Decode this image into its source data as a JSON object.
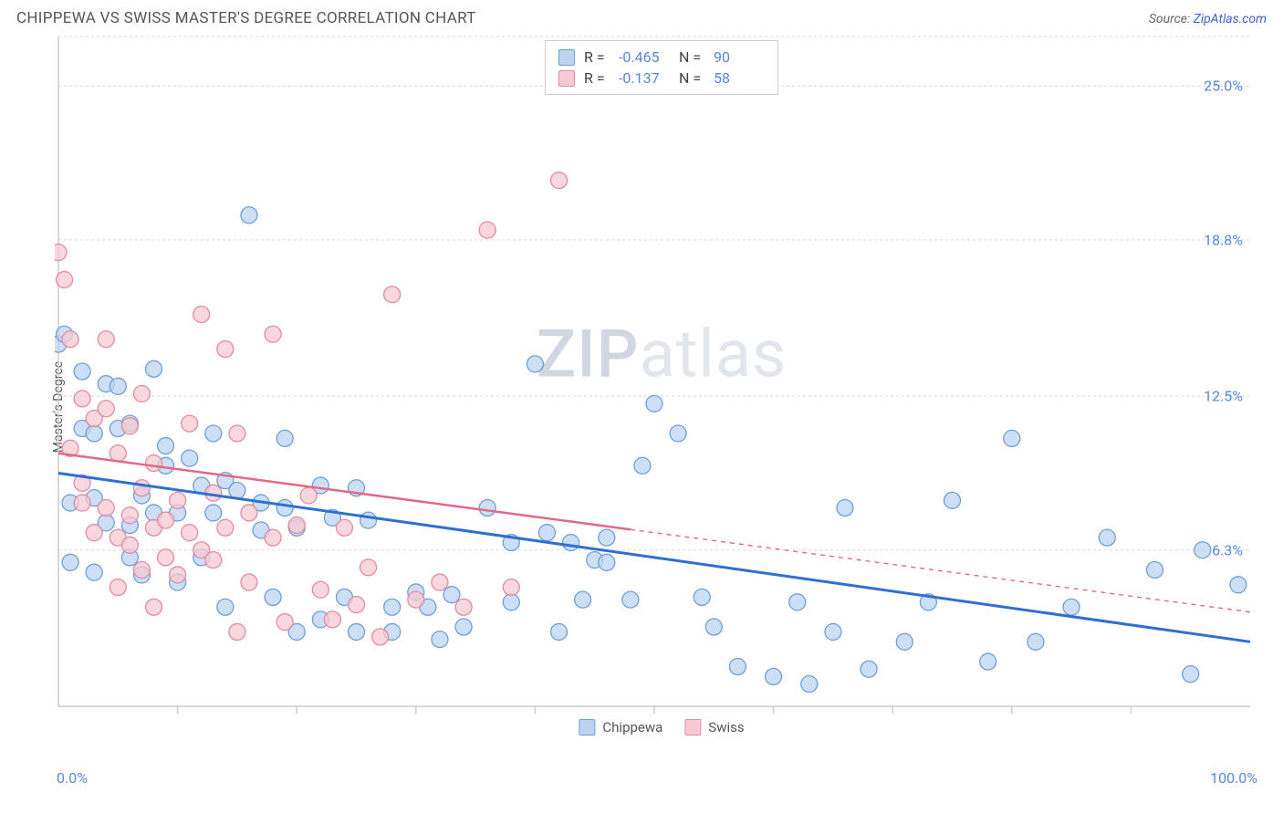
{
  "header": {
    "title": "CHIPPEWA VS SWISS MASTER'S DEGREE CORRELATION CHART",
    "source_prefix": "Source: ",
    "source_link": "ZipAtlas.com"
  },
  "watermark": {
    "bold": "ZIP",
    "light": "atlas"
  },
  "axes": {
    "ylabel": "Master's Degree",
    "xlim": [
      0,
      100
    ],
    "ylim": [
      0,
      27
    ],
    "x_tick_label_min": "0.0%",
    "x_tick_label_max": "100.0%",
    "y_ticks": [
      {
        "v": 6.3,
        "label": "6.3%"
      },
      {
        "v": 12.5,
        "label": "12.5%"
      },
      {
        "v": 18.8,
        "label": "18.8%"
      },
      {
        "v": 25.0,
        "label": "25.0%"
      }
    ],
    "x_minor_ticks": [
      10,
      20,
      30,
      40,
      50,
      60,
      70,
      80,
      90
    ],
    "grid_color": "#d7d7d7",
    "axis_color": "#cccccc",
    "tick_text_color": "#5a87d6",
    "background": "#ffffff"
  },
  "series": [
    {
      "name": "Chippewa",
      "point_fill": "#bcd4f0",
      "point_stroke": "#6f9fd8",
      "line_color": "#2f6fd0",
      "line_width": 3,
      "marker_r": 9,
      "R": "-0.465",
      "N": "90",
      "trend": {
        "x1": 0,
        "y1": 9.4,
        "x2": 100,
        "y2": 2.6
      },
      "dash_from_x": null,
      "points": [
        [
          0,
          14.6
        ],
        [
          0.5,
          15.0
        ],
        [
          1,
          5.8
        ],
        [
          1,
          8.2
        ],
        [
          2,
          11.2
        ],
        [
          2,
          13.5
        ],
        [
          3,
          8.4
        ],
        [
          3,
          11.0
        ],
        [
          3,
          5.4
        ],
        [
          4,
          13.0
        ],
        [
          4,
          7.4
        ],
        [
          5,
          11.2
        ],
        [
          5,
          12.9
        ],
        [
          6,
          11.4
        ],
        [
          6,
          7.3
        ],
        [
          6,
          6.0
        ],
        [
          7,
          8.5
        ],
        [
          7,
          5.3
        ],
        [
          8,
          13.6
        ],
        [
          8,
          7.8
        ],
        [
          9,
          9.7
        ],
        [
          9,
          10.5
        ],
        [
          10,
          5.0
        ],
        [
          10,
          7.8
        ],
        [
          11,
          10.0
        ],
        [
          12,
          8.9
        ],
        [
          12,
          6.0
        ],
        [
          13,
          11.0
        ],
        [
          13,
          7.8
        ],
        [
          14,
          9.1
        ],
        [
          14,
          4.0
        ],
        [
          15,
          8.7
        ],
        [
          16,
          19.8
        ],
        [
          17,
          8.2
        ],
        [
          17,
          7.1
        ],
        [
          18,
          4.4
        ],
        [
          19,
          10.8
        ],
        [
          19,
          8.0
        ],
        [
          20,
          3.0
        ],
        [
          20,
          7.2
        ],
        [
          22,
          8.9
        ],
        [
          22,
          3.5
        ],
        [
          23,
          7.6
        ],
        [
          24,
          4.4
        ],
        [
          25,
          8.8
        ],
        [
          25,
          3.0
        ],
        [
          26,
          7.5
        ],
        [
          28,
          4.0
        ],
        [
          28,
          3.0
        ],
        [
          30,
          4.6
        ],
        [
          31,
          4.0
        ],
        [
          32,
          2.7
        ],
        [
          33,
          4.5
        ],
        [
          34,
          3.2
        ],
        [
          36,
          8.0
        ],
        [
          38,
          4.2
        ],
        [
          38,
          6.6
        ],
        [
          40,
          13.8
        ],
        [
          41,
          7.0
        ],
        [
          42,
          3.0
        ],
        [
          43,
          6.6
        ],
        [
          44,
          4.3
        ],
        [
          45,
          5.9
        ],
        [
          46,
          5.8
        ],
        [
          46,
          6.8
        ],
        [
          48,
          4.3
        ],
        [
          49,
          9.7
        ],
        [
          50,
          12.2
        ],
        [
          52,
          11.0
        ],
        [
          54,
          4.4
        ],
        [
          55,
          3.2
        ],
        [
          57,
          1.6
        ],
        [
          60,
          1.2
        ],
        [
          62,
          4.2
        ],
        [
          63,
          0.9
        ],
        [
          65,
          3.0
        ],
        [
          66,
          8.0
        ],
        [
          68,
          1.5
        ],
        [
          71,
          2.6
        ],
        [
          73,
          4.2
        ],
        [
          75,
          8.3
        ],
        [
          78,
          1.8
        ],
        [
          80,
          10.8
        ],
        [
          82,
          2.6
        ],
        [
          85,
          4.0
        ],
        [
          88,
          6.8
        ],
        [
          92,
          5.5
        ],
        [
          95,
          1.3
        ],
        [
          96,
          6.3
        ],
        [
          99,
          4.9
        ]
      ]
    },
    {
      "name": "Swiss",
      "point_fill": "#f6c9d3",
      "point_stroke": "#e38ba2",
      "line_color": "#e06a85",
      "line_width": 2.5,
      "marker_r": 9,
      "R": "-0.137",
      "N": "58",
      "trend": {
        "x1": 0,
        "y1": 10.2,
        "x2": 100,
        "y2": 3.8
      },
      "dash_from_x": 48,
      "points": [
        [
          0,
          18.3
        ],
        [
          0.5,
          17.2
        ],
        [
          1,
          14.8
        ],
        [
          1,
          10.4
        ],
        [
          2,
          12.4
        ],
        [
          2,
          9.0
        ],
        [
          2,
          8.2
        ],
        [
          3,
          11.6
        ],
        [
          3,
          7.0
        ],
        [
          4,
          14.8
        ],
        [
          4,
          12.0
        ],
        [
          4,
          8.0
        ],
        [
          5,
          10.2
        ],
        [
          5,
          6.8
        ],
        [
          5,
          4.8
        ],
        [
          6,
          11.3
        ],
        [
          6,
          7.7
        ],
        [
          6,
          6.5
        ],
        [
          7,
          12.6
        ],
        [
          7,
          8.8
        ],
        [
          7,
          5.5
        ],
        [
          8,
          7.2
        ],
        [
          8,
          9.8
        ],
        [
          8,
          4.0
        ],
        [
          9,
          7.5
        ],
        [
          9,
          6.0
        ],
        [
          10,
          5.3
        ],
        [
          10,
          8.3
        ],
        [
          11,
          11.4
        ],
        [
          11,
          7.0
        ],
        [
          12,
          15.8
        ],
        [
          12,
          6.3
        ],
        [
          13,
          5.9
        ],
        [
          13,
          8.6
        ],
        [
          14,
          14.4
        ],
        [
          14,
          7.2
        ],
        [
          15,
          11.0
        ],
        [
          15,
          3.0
        ],
        [
          16,
          7.8
        ],
        [
          16,
          5.0
        ],
        [
          18,
          15.0
        ],
        [
          18,
          6.8
        ],
        [
          19,
          3.4
        ],
        [
          20,
          7.3
        ],
        [
          21,
          8.5
        ],
        [
          22,
          4.7
        ],
        [
          23,
          3.5
        ],
        [
          24,
          7.2
        ],
        [
          25,
          4.1
        ],
        [
          26,
          5.6
        ],
        [
          27,
          2.8
        ],
        [
          28,
          16.6
        ],
        [
          30,
          4.3
        ],
        [
          32,
          5.0
        ],
        [
          34,
          4.0
        ],
        [
          36,
          19.2
        ],
        [
          38,
          4.8
        ],
        [
          42,
          21.2
        ]
      ]
    }
  ],
  "bottom_legend": [
    "Chippewa",
    "Swiss"
  ]
}
